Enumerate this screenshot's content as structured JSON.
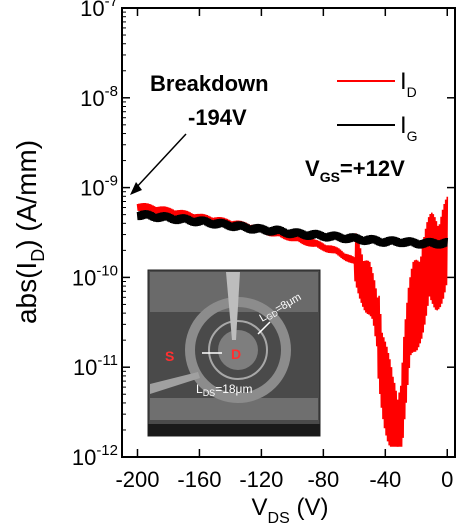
{
  "chart_data": {
    "type": "line",
    "xlabel": {
      "main": "V",
      "sub": "DS",
      "unit": " (V)"
    },
    "ylabel": {
      "pre": "abs(I",
      "sub": "D",
      "post": ") (A/mm)"
    },
    "x_ticks": [
      -200,
      -160,
      -120,
      -80,
      -40,
      0
    ],
    "x_tick_labels": [
      "-200",
      "-160",
      "-120",
      "-80",
      "-40",
      "0"
    ],
    "xlim": [
      -210,
      5
    ],
    "ylim": [
      1e-12,
      1e-07
    ],
    "yscale": "log",
    "y_ticks": [
      1e-12,
      1e-11,
      1e-10,
      1e-09,
      1e-08,
      1e-07
    ],
    "y_tick_labels": [
      {
        "base": "10",
        "exp": "-12"
      },
      {
        "base": "10",
        "exp": "-11"
      },
      {
        "base": "10",
        "exp": "-10"
      },
      {
        "base": "10",
        "exp": "-9"
      },
      {
        "base": "10",
        "exp": "-8"
      },
      {
        "base": "10",
        "exp": "-7"
      }
    ],
    "series": [
      {
        "name": "I_D",
        "label_main": "I",
        "label_sub": "D",
        "color": "#ff0000",
        "x": [
          -200,
          -190,
          -180,
          -170,
          -160,
          -150,
          -140,
          -130,
          -120,
          -110,
          -100,
          -90,
          -80,
          -70,
          -60,
          -55,
          -50,
          -45,
          -42,
          -38,
          -35,
          -32,
          -30,
          -28,
          -25,
          -22,
          -18,
          -14,
          -10,
          -5,
          0
        ],
        "y": [
          6.2e-10,
          5.8e-10,
          5.4e-10,
          5e-10,
          4.6e-10,
          4.3e-10,
          4e-10,
          3.7e-10,
          3.4e-10,
          3.1e-10,
          2.8e-10,
          2.5e-10,
          2.2e-10,
          1.9e-10,
          1.5e-10,
          1.1e-10,
          7e-11,
          3e-11,
          1.2e-11,
          4e-12,
          2e-12,
          1.5e-12,
          3e-12,
          8e-12,
          2e-11,
          4e-11,
          7e-11,
          1e-10,
          1.4e-10,
          1.8e-10,
          2e-10
        ]
      },
      {
        "name": "I_G",
        "label_main": "I",
        "label_sub": "G",
        "color": "#000000",
        "x": [
          -200,
          -190,
          -180,
          -170,
          -160,
          -150,
          -140,
          -130,
          -120,
          -110,
          -100,
          -90,
          -80,
          -70,
          -60,
          -50,
          -40,
          -30,
          -20,
          -10,
          0
        ],
        "y": [
          5e-10,
          4.8e-10,
          4.6e-10,
          4.4e-10,
          4.2e-10,
          4e-10,
          3.8e-10,
          3.6e-10,
          3.4e-10,
          3.3e-10,
          3.1e-10,
          3e-10,
          2.9e-10,
          2.8e-10,
          2.7e-10,
          2.6e-10,
          2.5e-10,
          2.5e-10,
          2.4e-10,
          2.4e-10,
          2.4e-10
        ]
      }
    ],
    "annotations": {
      "breakdown_line1": "Breakdown",
      "breakdown_line2": "-194V",
      "vgs_main": "V",
      "vgs_sub": "GS",
      "vgs_value": "=+12V",
      "arrow_target_x": -200,
      "arrow_target_y": 6.5e-10
    },
    "inset": {
      "label_s": "S",
      "label_d": "D",
      "label_ld": "L",
      "label_ld_sub": "GD",
      "label_ld_value": "=8μm",
      "label_ls": "L",
      "label_ls_sub": "DS",
      "label_ls_value": "=18μm"
    },
    "legend_position": "top-right",
    "grid": false
  }
}
